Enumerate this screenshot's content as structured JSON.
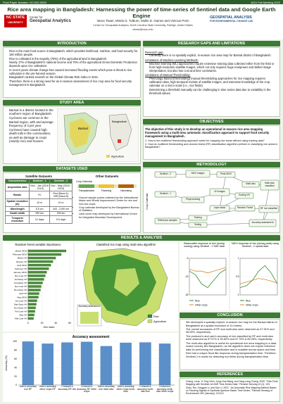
{
  "header": {
    "paper_number": "Final Paper Number: GC15G-0530",
    "meeting": "AGU Fall Meeting 2022",
    "title": "Rice area mapping in Bangladesh: Harnessing the power of time-series of Sentinel data and Google Earth Engine",
    "logo_left_1": "NC STATE",
    "logo_left_2": "UNIVERSITY",
    "logo_center_1": "Center for",
    "logo_center_2": "Geospatial Analytics",
    "logo_right_1": "GEOSPATIAL ANALYSIS",
    "logo_right_2": "FOR ENVIRONMENTAL CHANGE LAB",
    "authors": "Varun Tiwari, Mirela G. Tulbure, Mollie D. Gaines and Vinicius Perin",
    "affiliation": "Center for Geospatial Analytics, North Carolina State University, Raleigh, United States",
    "email": "vtiwari@ncsu.edu"
  },
  "intro": {
    "heading": "INTRODUCTION",
    "bullets": [
      "Rice is the main food source in Bangladesh, which provides livelihood, nutrition, and food security for 160 million people.",
      "Rice is cultivated in the majority (75%) of the agricultural land in Bangladesh.",
      "Nearly 17% of Bangladesh's national income and 70% of the agricultural Gross Domestic Production depends upon rice cultivation.",
      "In recent years climate change has caused increased flooding events which pose a threat to rice cultivation in the pre-harvest season.",
      "Bangladesh ranked seventh on the Global Climate Risk Index in 2021.",
      "Therefore, there is a strong need for an in-season assessment of rice crop area for food security management in Bangladesh."
    ]
  },
  "research_gaps": {
    "heading": "RESEARCH GAPS AND LIMITATIONS",
    "blocks": [
      {
        "heading": "Research gap",
        "bullets": [
          "Currently there is no spatially explicit, in-season rice area map for Barisal district of Bangladesh."
        ]
      },
      {
        "heading": "Limitations of Machine Learning Methods:",
        "bullets": [
          "Machine learning (ML) approaches require extensive training data collected either from the field or from high-resolution satellite images, which not only requires huge manpower and skilled image interpretation, but also has cost and time constraints."
        ]
      },
      {
        "heading": "Limitations of Manual Thresholding:",
        "bullets": [
          "Phenology-based (thresholding) manual thresholding approaches for rice mapping requires calibration data, high temporal revisits of satellite images, and extensive knowledge of the crop calendar on a micro-scale (i.e., rice fields).",
          "Determining a threshold manually can be challenging in time series data due to variability in the threshold values."
        ]
      }
    ]
  },
  "study_area": {
    "heading": "STUDY AREA",
    "bullets": [
      "Barisal is a district located in the southern region of Bangladesh.",
      "Cyclones are common in the Barisal region, with and average frequency of 3 per year.",
      "Cyclones have caused high death tolls in the communities, as well as damage to crops (mainly rice) and houses."
    ],
    "map_label_1": "Barisal",
    "map_label_2": "Bangladesh",
    "legend": "Agriculture"
  },
  "objectives": {
    "heading": "OBJECTIVES",
    "text": "The objective of this study is to develop an operational in-season rice area mapping framework using a multi-otsu automatic classification approach to support food security management in Bangladesh.",
    "questions": [
      "1. How is the multilevel thresholding approach useful for mapping rice areas without using training data?",
      "2. How do multilevel thresholding and random forest (RF) classification algorithm perform in classifying rice areas in Bangladesh?"
    ]
  },
  "datasets": {
    "heading": "DATASETS USED",
    "satellite_title": "Satellite Datasets",
    "table": {
      "header": [
        "Characteristics",
        "Sentinel - 1",
        "Sentinel - 2"
      ],
      "rows": [
        [
          "Acquisition date",
          "Nov - Jan (2018 - 2019)",
          "Nov - May (2018 - 2019)"
        ],
        [
          "Bands",
          "VV",
          "Red (Band 4), NIR (Band 8)"
        ],
        [
          "Spatial resolution (m)",
          "10 m",
          "10 m"
        ],
        [
          "Wavelength",
          "5.5 cm",
          "443 - 2190 nm"
        ],
        [
          "Swath width",
          "250 km",
          "290 km"
        ],
        [
          "Temporal resolution",
          "12 days",
          "5.5 days"
        ]
      ]
    },
    "other_title": "Other Datasets",
    "crop_calendar": "Crop Calendar",
    "stages": [
      "Transplantation",
      "Flowering",
      "Harvesting"
    ],
    "bullets": [
      "Ground sample points collected by the International Maize and Wheat Improvement Center for rice and non-rice crops.",
      "Crop calendar developed by the Bangladesh Bureau of Statistics.",
      "Land cover map developed by International Centre for Integrated Mountain Development."
    ]
  },
  "methodology": {
    "heading": "METHODOLOGY",
    "crop_calendar": "Crop Calendar",
    "nodes": [
      "Sentinel - 2",
      "NDVI images",
      "Peak NDVI",
      "Multi-otsu",
      "Multi-otsu classified",
      "Sentinel - 1",
      "Preprocessing",
      "VH images",
      "Sowing VH",
      "Layer stack",
      "Random Forest",
      "RF rice classified",
      "Reference samples",
      "Training",
      "Testing",
      "Accuracy assessment"
    ]
  },
  "results": {
    "heading": "RESULTS & ANALYSIS",
    "importance": {
      "type": "bar",
      "title": "Random forest variable importance",
      "categories": [
        "March NDVI",
        "February NDVI",
        "March VH",
        "January VH",
        "April NDVI",
        "February VH",
        "January NDVI",
        "Dec Late VH",
        "Jan Early VH",
        "Feb Early VH",
        "Nov Late VH",
        "Dec Early VH",
        "April VH",
        "May NDVI",
        "Jan Late VH",
        "Mar Early VH",
        "Nov Early VH",
        "Feb Late VH",
        "May VH",
        "Mar Late VH"
      ],
      "values": [
        55,
        48,
        40,
        36,
        33,
        30,
        27,
        25,
        23,
        21,
        19,
        18,
        16,
        15,
        13,
        12,
        11,
        10,
        9,
        8
      ],
      "color": "#4b8b3b",
      "xlim": [
        0,
        60
      ],
      "xticks": [
        0,
        20,
        40,
        60
      ],
      "xlabel": "Gini index"
    },
    "map": {
      "title": "Classified rice map using multi-otsu algorithm",
      "inset": "Accuracy assessment",
      "legend": [
        "Rice",
        "Agriculture"
      ]
    },
    "backscatter": {
      "type": "line",
      "title": "Backscatter response of rice (during sowing) using Sentinel - 1 SAR data",
      "ylim": [
        -25,
        -5
      ],
      "yticks": [
        -25,
        -15,
        -5
      ],
      "series": [
        {
          "name": "Rice",
          "color": "#2e8b2e",
          "values": [
            -12,
            -14,
            -19,
            -21,
            -17,
            -13,
            -11
          ]
        },
        {
          "name": "Other crops",
          "color": "#d08a2c",
          "values": [
            -11,
            -12,
            -12,
            -13,
            -12,
            -11,
            -10
          ]
        }
      ]
    },
    "ndvi": {
      "type": "line",
      "title": "NDVI response of rice (during peak) using Sentinel - 2 optical data",
      "ylim": [
        0,
        1
      ],
      "yticks": [
        0,
        0.5,
        1
      ],
      "series": [
        {
          "name": "Rice",
          "color": "#2e8b2e",
          "values": [
            0.2,
            0.25,
            0.4,
            0.65,
            0.8,
            0.6,
            0.3
          ]
        },
        {
          "name": "Other crops",
          "color": "#d08a2c",
          "values": [
            0.3,
            0.35,
            0.4,
            0.45,
            0.42,
            0.38,
            0.32
          ]
        }
      ]
    },
    "accuracy": {
      "type": "bar",
      "title": "Accuracy assessment",
      "categories": [
        "User's accuracy rice RF",
        "User's accuracy other crops RF",
        "Producer's accuracy RF rice",
        "Producer's accuracy RF other crops",
        "User's accuracy rice multi-otsu",
        "User's accuracy other crops multi-otsu",
        "Producer's accuracy multi-otsu rice",
        "Producer's accuracy multi-otsu other crops"
      ],
      "values": [
        99.82,
        95,
        97.57,
        99,
        89.28,
        97,
        97.75,
        95
      ],
      "color": "#5b8fc9",
      "ylim": [
        0,
        100
      ],
      "yticks": [
        0,
        20,
        40,
        60,
        80,
        100
      ],
      "ylabel": "Accuracy (%)"
    }
  },
  "conclusion": {
    "heading": "CONCLUSION",
    "bullets": [
      "We developed a spatially explicit, in-season rice map for the Barisal district of Bangladesh at a spatial resolution of 10 meters.",
      "The overall accuracies of RF and multi-otsu were observed as 97.51% and 96.05%, respectively.",
      "The producer's and user's accuracy of rice classified by RF and multi-otsu were observed as 97.57% & 99.82% and 97.75% & 89.28%, respectively.",
      "The multi-otsu algorithm is useful for operational rice area mapping in a data-scarce country like Bangladesh, as the algorithm does not require reference data for performing rice classification and is scalable across space and time.",
      "Rice had a unique flood like response during transplantation time. Therefore, Sentinel-1 is useful for detecting rice fields during transplantation time."
    ]
  },
  "references": {
    "heading": "REFERENCES",
    "items": [
      "Chang, Lena, Yi-Ting Chen, Jung-Hua Wang, and Yang-Lang Chang. 2020. \"Rice-Field Mapping with Sentinel-1A SAR Time-Series Data.\" Remote Sensing 13 (1): 103.",
      "Zhao, Rui, Yonggan Li, and Kan Li. 2021. \"An Automatic Rice Mapping Method Based on Flooding Signals in Synthetic Aperture Radar Time Series.\" Remote Sensing of Environment 252 (January): 112112."
    ]
  }
}
